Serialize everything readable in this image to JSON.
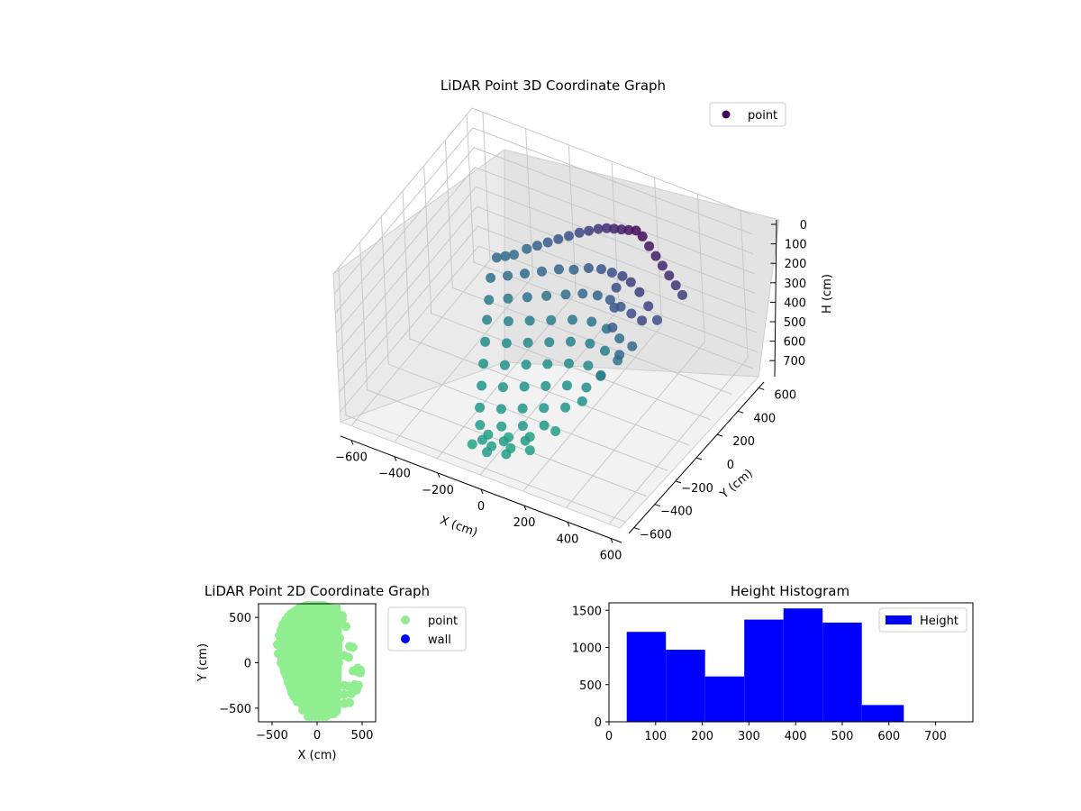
{
  "chart_data": [
    {
      "type": "scatter",
      "projection": "3d",
      "title": "LiDAR Point 3D Coordinate Graph",
      "xlabel": "X (cm)",
      "ylabel": "Y (cm)",
      "zlabel": "H (cm)",
      "xlim": [
        -650,
        650
      ],
      "ylim": [
        -650,
        650
      ],
      "zlim": [
        0,
        750
      ],
      "z_inverted": true,
      "xticks": [
        -600,
        -400,
        -200,
        0,
        200,
        400,
        600
      ],
      "yticks": [
        -600,
        -400,
        -200,
        0,
        200,
        400,
        600
      ],
      "zticks": [
        0,
        100,
        200,
        300,
        400,
        500,
        600,
        700
      ],
      "grid": true,
      "legend": {
        "placement": "upper-right",
        "entries": [
          {
            "label": "point",
            "color": "#440154"
          }
        ]
      },
      "colormap": "viridis",
      "colors": {
        "low_height": "#440154",
        "mid_height": "#3b528b",
        "high_height": "#21918c",
        "floor": "#22a884"
      },
      "series": [
        {
          "name": "point",
          "x": [
            -380,
            -360,
            -340,
            -300,
            -260,
            -220,
            -180,
            -140,
            -100,
            -60,
            -20,
            20,
            60,
            100,
            140,
            180,
            220,
            260,
            300,
            340,
            380,
            420,
            460,
            -360,
            -300,
            -240,
            -180,
            -120,
            -60,
            0,
            60,
            120,
            180,
            240,
            300,
            360,
            420,
            -320,
            -250,
            -180,
            -110,
            -40,
            30,
            100,
            170,
            240,
            310,
            380,
            -280,
            -200,
            -120,
            -40,
            40,
            120,
            200,
            280,
            360,
            -240,
            -160,
            -80,
            0,
            80,
            160,
            240,
            320,
            -200,
            -120,
            -40,
            40,
            120,
            200,
            280,
            -160,
            -80,
            0,
            80,
            160,
            240,
            -120,
            -40,
            40,
            120,
            200,
            -80,
            0,
            80,
            160,
            -40,
            40,
            120,
            0,
            80,
            -60,
            20,
            100,
            180,
            260,
            300,
            340,
            260,
            220,
            180,
            -100,
            -20,
            60,
            140
          ],
          "y": [
            300,
            340,
            380,
            420,
            440,
            460,
            480,
            500,
            520,
            530,
            540,
            540,
            530,
            520,
            510,
            500,
            480,
            460,
            440,
            420,
            400,
            380,
            360,
            200,
            240,
            280,
            320,
            360,
            380,
            400,
            400,
            380,
            360,
            320,
            280,
            240,
            200,
            100,
            140,
            180,
            220,
            260,
            280,
            280,
            260,
            220,
            180,
            140,
            0,
            40,
            80,
            120,
            160,
            180,
            160,
            120,
            80,
            -100,
            -60,
            -20,
            20,
            60,
            80,
            60,
            20,
            -200,
            -160,
            -120,
            -80,
            -40,
            -20,
            -60,
            -300,
            -260,
            -220,
            -180,
            -140,
            -120,
            -400,
            -360,
            -320,
            -280,
            -240,
            -480,
            -440,
            -400,
            -360,
            -540,
            -500,
            -460,
            -580,
            -560,
            -450,
            -420,
            -380,
            -300,
            -200,
            -100,
            0,
            100,
            200,
            300,
            -520,
            -500,
            -480,
            -460
          ],
          "h": [
            420,
            430,
            440,
            420,
            400,
            380,
            360,
            340,
            320,
            300,
            280,
            260,
            240,
            220,
            200,
            180,
            180,
            200,
            220,
            240,
            260,
            280,
            300,
            450,
            440,
            430,
            420,
            410,
            400,
            380,
            360,
            340,
            320,
            300,
            300,
            320,
            340,
            480,
            470,
            460,
            450,
            440,
            420,
            400,
            380,
            360,
            340,
            320,
            500,
            500,
            490,
            480,
            470,
            460,
            450,
            440,
            420,
            530,
            530,
            520,
            510,
            500,
            490,
            480,
            470,
            560,
            560,
            550,
            540,
            530,
            520,
            510,
            590,
            590,
            580,
            570,
            560,
            550,
            620,
            620,
            610,
            600,
            590,
            640,
            640,
            630,
            620,
            660,
            660,
            650,
            680,
            670,
            700,
            700,
            690,
            680,
            560,
            480,
            420,
            380,
            360,
            340,
            720,
            710,
            700,
            690
          ],
          "color_by": "h"
        }
      ]
    },
    {
      "type": "scatter",
      "title": "LiDAR Point 2D Coordinate Graph",
      "xlabel": "X (cm)",
      "ylabel": "Y (cm)",
      "xlim": [
        -650,
        650
      ],
      "ylim": [
        -650,
        650
      ],
      "xticks": [
        -500,
        0,
        500
      ],
      "yticks": [
        -500,
        0,
        500
      ],
      "grid": false,
      "legend": {
        "placement": "outside-right",
        "entries": [
          {
            "label": "point",
            "color": "#90ee90"
          },
          {
            "label": "wall",
            "color": "#0000ff"
          }
        ]
      },
      "series": [
        {
          "name": "point",
          "color": "#90ee90",
          "x": [
            -420,
            -400,
            -380,
            -350,
            -320,
            -290,
            -260,
            -230,
            -200,
            -170,
            -140,
            -110,
            -80,
            -50,
            -20,
            10,
            40,
            70,
            100,
            130,
            160,
            190,
            220,
            250,
            280,
            -440,
            -410,
            -380,
            -350,
            -320,
            -290,
            -260,
            -230,
            -200,
            -170,
            -140,
            -110,
            -80,
            -50,
            -20,
            10,
            40,
            70,
            100,
            130,
            160,
            190,
            220,
            250,
            -430,
            -390,
            -350,
            -310,
            -270,
            -230,
            -190,
            -150,
            -110,
            -70,
            -30,
            10,
            50,
            90,
            130,
            170,
            210,
            250,
            -400,
            -360,
            -320,
            -280,
            -240,
            -200,
            -160,
            -120,
            -80,
            -40,
            0,
            40,
            80,
            120,
            160,
            200,
            240,
            -360,
            -320,
            -280,
            -240,
            -200,
            -160,
            -120,
            -80,
            -40,
            0,
            40,
            80,
            120,
            160,
            200,
            -320,
            -280,
            -240,
            -200,
            -160,
            -120,
            -80,
            -40,
            0,
            40,
            80,
            120,
            160,
            200,
            -280,
            -240,
            -200,
            -160,
            -120,
            -80,
            -40,
            0,
            40,
            80,
            120,
            160,
            -220,
            -180,
            -140,
            -100,
            -60,
            -20,
            20,
            60,
            100,
            140,
            -160,
            -120,
            -80,
            -40,
            0,
            40,
            80,
            120,
            -100,
            -60,
            -20,
            20,
            60,
            100,
            280,
            320,
            360,
            400,
            450,
            480,
            300,
            350,
            400,
            450,
            480,
            300,
            350,
            420,
            460,
            300,
            380,
            440,
            300,
            360
          ],
          "y": [
            300,
            360,
            420,
            470,
            510,
            540,
            560,
            580,
            600,
            610,
            620,
            630,
            630,
            630,
            630,
            630,
            630,
            630,
            620,
            610,
            600,
            580,
            560,
            520,
            480,
            200,
            220,
            240,
            260,
            280,
            300,
            320,
            340,
            360,
            380,
            400,
            420,
            440,
            460,
            480,
            500,
            520,
            540,
            560,
            570,
            580,
            560,
            520,
            460,
            100,
            110,
            120,
            130,
            140,
            150,
            160,
            170,
            180,
            190,
            200,
            210,
            220,
            230,
            240,
            250,
            260,
            270,
            0,
            0,
            0,
            0,
            0,
            0,
            0,
            0,
            0,
            0,
            0,
            0,
            0,
            0,
            0,
            0,
            0,
            -100,
            -100,
            -100,
            -100,
            -100,
            -100,
            -100,
            -100,
            -100,
            -100,
            -100,
            -100,
            -100,
            -100,
            -100,
            -220,
            -220,
            -220,
            -220,
            -220,
            -220,
            -220,
            -220,
            -220,
            -220,
            -220,
            -220,
            -220,
            -220,
            -330,
            -330,
            -330,
            -330,
            -330,
            -330,
            -330,
            -330,
            -330,
            -330,
            -330,
            -330,
            -430,
            -430,
            -430,
            -430,
            -430,
            -430,
            -430,
            -430,
            -430,
            -430,
            -520,
            -520,
            -520,
            -520,
            -520,
            -520,
            -520,
            -520,
            -590,
            -590,
            -590,
            -590,
            -590,
            -590,
            520,
            400,
            180,
            170,
            -60,
            -80,
            80,
            60,
            -90,
            -100,
            -110,
            -250,
            -260,
            -240,
            -250,
            -350,
            -340,
            -300,
            -450,
            -440
          ]
        },
        {
          "name": "wall",
          "color": "#0000ff",
          "x": [],
          "y": []
        }
      ]
    },
    {
      "type": "bar",
      "title": "Height Histogram",
      "xlabel": "",
      "ylabel": "",
      "xlim": [
        0,
        780
      ],
      "ylim": [
        0,
        1600
      ],
      "xticks": [
        0,
        100,
        200,
        300,
        400,
        500,
        600,
        700
      ],
      "yticks": [
        0,
        500,
        1000,
        1500
      ],
      "grid": false,
      "legend": {
        "placement": "upper-right",
        "entries": [
          {
            "label": "Height",
            "color": "#0000ff"
          }
        ]
      },
      "bin_edges": [
        38,
        122,
        206,
        290,
        374,
        458,
        542,
        632
      ],
      "series": [
        {
          "name": "Height",
          "color": "#0000ff",
          "values": [
            1210,
            970,
            610,
            1375,
            1525,
            1335,
            225
          ]
        }
      ]
    }
  ]
}
